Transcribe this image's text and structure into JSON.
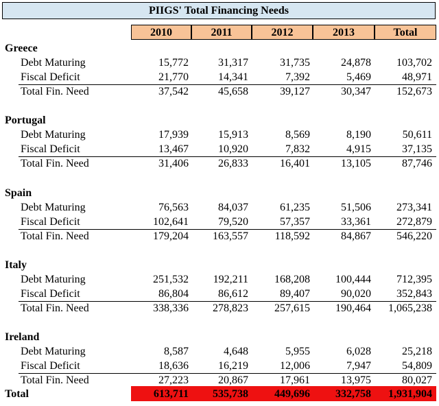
{
  "title": "PIIGS' Total Financing Needs",
  "columns": [
    "2010",
    "2011",
    "2012",
    "2013",
    "Total"
  ],
  "row_labels": [
    "Debt Maturing",
    "Fiscal Deficit",
    "Total Fin. Need"
  ],
  "countries": [
    {
      "name": "Greece",
      "rows": [
        [
          "15,772",
          "31,317",
          "31,735",
          "24,878",
          "103,702"
        ],
        [
          "21,770",
          "14,341",
          "7,392",
          "5,469",
          "48,971"
        ],
        [
          "37,542",
          "45,658",
          "39,127",
          "30,347",
          "152,673"
        ]
      ]
    },
    {
      "name": "Portugal",
      "rows": [
        [
          "17,939",
          "15,913",
          "8,569",
          "8,190",
          "50,611"
        ],
        [
          "13,467",
          "10,920",
          "7,832",
          "4,915",
          "37,135"
        ],
        [
          "31,406",
          "26,833",
          "16,401",
          "13,105",
          "87,746"
        ]
      ]
    },
    {
      "name": "Spain",
      "rows": [
        [
          "76,563",
          "84,037",
          "61,235",
          "51,506",
          "273,341"
        ],
        [
          "102,641",
          "79,520",
          "57,357",
          "33,361",
          "272,879"
        ],
        [
          "179,204",
          "163,557",
          "118,592",
          "84,867",
          "546,220"
        ]
      ]
    },
    {
      "name": "Italy",
      "rows": [
        [
          "251,532",
          "192,211",
          "168,208",
          "100,444",
          "712,395"
        ],
        [
          "86,804",
          "86,612",
          "89,407",
          "90,020",
          "352,843"
        ],
        [
          "338,336",
          "278,823",
          "257,615",
          "190,464",
          "1,065,238"
        ]
      ]
    },
    {
      "name": "Ireland",
      "rows": [
        [
          "8,587",
          "4,648",
          "5,955",
          "6,028",
          "25,218"
        ],
        [
          "18,636",
          "16,219",
          "12,006",
          "7,947",
          "54,809"
        ],
        [
          "27,223",
          "20,867",
          "17,961",
          "13,975",
          "80,027"
        ]
      ]
    }
  ],
  "total": {
    "label": "Total",
    "values": [
      "613,711",
      "535,738",
      "449,696",
      "332,758",
      "1,931,904"
    ]
  },
  "colors": {
    "title_bg": "#d6e6f1",
    "header_bg": "#f8c397",
    "total_bg": "#ee1111"
  }
}
